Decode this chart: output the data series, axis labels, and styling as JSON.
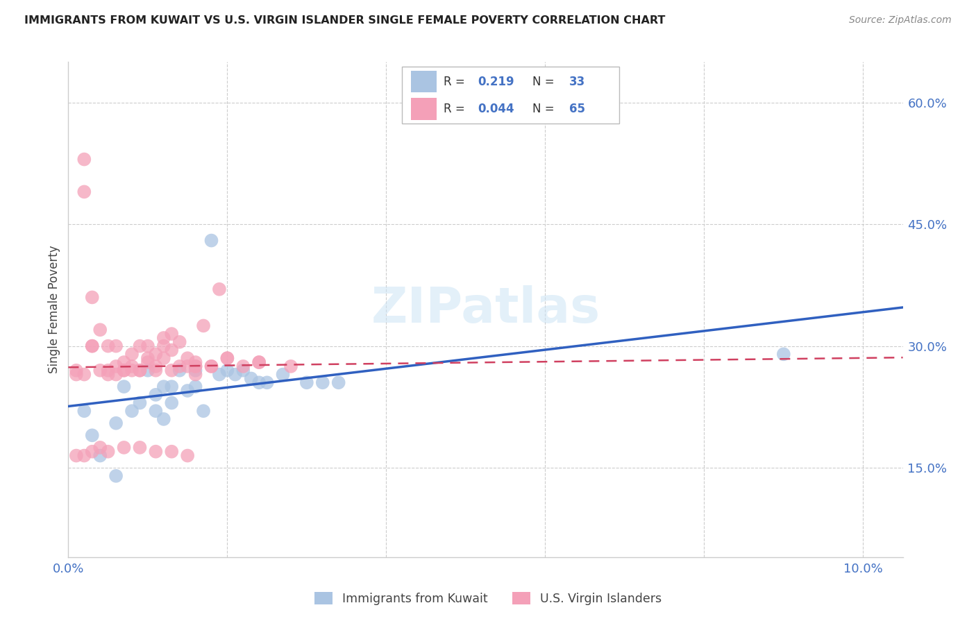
{
  "title": "IMMIGRANTS FROM KUWAIT VS U.S. VIRGIN ISLANDER SINGLE FEMALE POVERTY CORRELATION CHART",
  "source": "Source: ZipAtlas.com",
  "ylabel": "Single Female Poverty",
  "xlim": [
    0.0,
    0.105
  ],
  "ylim": [
    0.04,
    0.65
  ],
  "y_ticks_right": [
    0.15,
    0.3,
    0.45,
    0.6
  ],
  "y_tick_labels_right": [
    "15.0%",
    "30.0%",
    "45.0%",
    "60.0%"
  ],
  "x_ticks": [
    0.0,
    0.02,
    0.04,
    0.06,
    0.08,
    0.1
  ],
  "x_tick_labels": [
    "0.0%",
    "",
    "",
    "",
    "",
    "10.0%"
  ],
  "legend1_label": "Immigrants from Kuwait",
  "legend2_label": "U.S. Virgin Islanders",
  "color_blue": "#aac4e2",
  "color_pink": "#f4a0b8",
  "line_blue": "#3060c0",
  "line_pink": "#d04060",
  "watermark": "ZIPatlas",
  "blue_x": [
    0.002,
    0.003,
    0.004,
    0.006,
    0.007,
    0.008,
    0.009,
    0.01,
    0.011,
    0.011,
    0.012,
    0.012,
    0.013,
    0.013,
    0.014,
    0.015,
    0.016,
    0.016,
    0.017,
    0.018,
    0.019,
    0.02,
    0.021,
    0.022,
    0.023,
    0.024,
    0.025,
    0.027,
    0.03,
    0.032,
    0.034,
    0.09,
    0.006
  ],
  "blue_y": [
    0.22,
    0.19,
    0.165,
    0.205,
    0.25,
    0.22,
    0.23,
    0.27,
    0.22,
    0.24,
    0.25,
    0.21,
    0.25,
    0.23,
    0.27,
    0.245,
    0.27,
    0.25,
    0.22,
    0.43,
    0.265,
    0.27,
    0.265,
    0.27,
    0.26,
    0.255,
    0.255,
    0.265,
    0.255,
    0.255,
    0.255,
    0.29,
    0.14
  ],
  "pink_x": [
    0.001,
    0.001,
    0.002,
    0.002,
    0.003,
    0.003,
    0.004,
    0.005,
    0.005,
    0.006,
    0.006,
    0.007,
    0.007,
    0.008,
    0.008,
    0.009,
    0.009,
    0.01,
    0.01,
    0.011,
    0.011,
    0.012,
    0.012,
    0.013,
    0.013,
    0.014,
    0.014,
    0.015,
    0.015,
    0.016,
    0.016,
    0.017,
    0.018,
    0.019,
    0.002,
    0.003,
    0.004,
    0.005,
    0.006,
    0.007,
    0.008,
    0.009,
    0.01,
    0.011,
    0.012,
    0.013,
    0.016,
    0.018,
    0.02,
    0.022,
    0.024,
    0.016,
    0.02,
    0.024,
    0.028,
    0.001,
    0.002,
    0.003,
    0.004,
    0.005,
    0.007,
    0.009,
    0.011,
    0.013,
    0.015
  ],
  "pink_y": [
    0.265,
    0.27,
    0.53,
    0.49,
    0.36,
    0.3,
    0.32,
    0.3,
    0.27,
    0.265,
    0.3,
    0.27,
    0.28,
    0.29,
    0.27,
    0.3,
    0.27,
    0.3,
    0.28,
    0.29,
    0.275,
    0.31,
    0.3,
    0.295,
    0.315,
    0.305,
    0.275,
    0.285,
    0.275,
    0.275,
    0.265,
    0.325,
    0.275,
    0.37,
    0.265,
    0.3,
    0.27,
    0.265,
    0.275,
    0.27,
    0.275,
    0.27,
    0.285,
    0.27,
    0.285,
    0.27,
    0.275,
    0.275,
    0.285,
    0.275,
    0.28,
    0.28,
    0.285,
    0.28,
    0.275,
    0.165,
    0.165,
    0.17,
    0.175,
    0.17,
    0.175,
    0.175,
    0.17,
    0.17,
    0.165
  ]
}
